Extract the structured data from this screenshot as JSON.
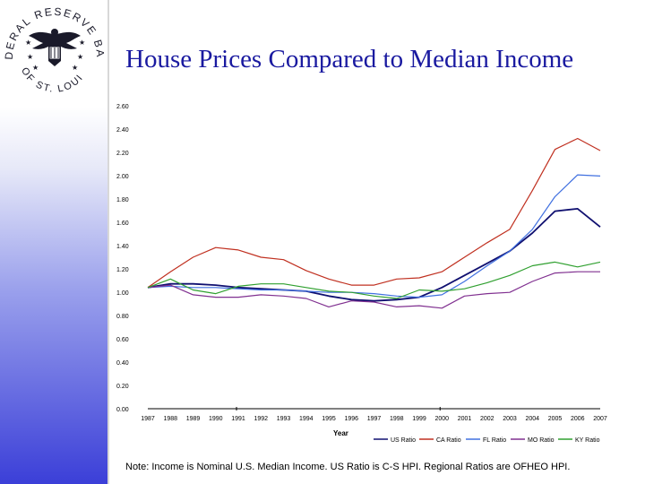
{
  "seal": {
    "top_text": "FEDERAL RESERVE BANK",
    "bottom_text": "OF ST. LOUIS"
  },
  "title": "House Prices Compared to Median Income",
  "note": "Note: Income is Nominal U.S. Median Income. US Ratio is C-S HPI. Regional Ratios are OFHEO HPI.",
  "colors": {
    "title": "#1a1aa0",
    "US": "#101070",
    "CA": "#c03020",
    "FL": "#4070e0",
    "MO": "#803090",
    "KY": "#30a030"
  },
  "chart_data": {
    "type": "line",
    "title": "House Prices Compared to Median Income",
    "xlabel": "Year",
    "ylabel": "",
    "ylim": [
      0,
      2.5
    ],
    "ytick_labels": [
      "0.00",
      "0.20",
      "0.40",
      "0.60",
      "0.80",
      "1.00",
      "1.20",
      "1.40",
      "1.60",
      "1.80",
      "2.00",
      "2.20",
      "2.40",
      "2.60"
    ],
    "categories": [
      "1987",
      "1988",
      "1989",
      "1990",
      "1991",
      "1992",
      "1993",
      "1994",
      "1995",
      "1996",
      "1997",
      "1998",
      "1999",
      "2000",
      "2001",
      "2002",
      "2003",
      "2004",
      "2005",
      "2006",
      "2007"
    ],
    "series": [
      {
        "name": "US Ratio",
        "color": "#101070",
        "values": [
          1.0,
          1.03,
          1.03,
          1.02,
          1.0,
          0.99,
          0.98,
          0.97,
          0.93,
          0.9,
          0.89,
          0.9,
          0.92,
          1.0,
          1.1,
          1.2,
          1.3,
          1.45,
          1.63,
          1.65,
          1.5
        ]
      },
      {
        "name": "CA Ratio",
        "color": "#c03020",
        "values": [
          1.0,
          1.13,
          1.25,
          1.33,
          1.31,
          1.25,
          1.23,
          1.14,
          1.07,
          1.02,
          1.02,
          1.07,
          1.08,
          1.13,
          1.25,
          1.37,
          1.48,
          1.8,
          2.14,
          2.23,
          2.13
        ]
      },
      {
        "name": "FL Ratio",
        "color": "#4070e0",
        "values": [
          1.0,
          1.01,
          1.0,
          1.0,
          0.99,
          0.98,
          0.98,
          0.97,
          0.96,
          0.96,
          0.95,
          0.93,
          0.92,
          0.94,
          1.05,
          1.18,
          1.3,
          1.48,
          1.75,
          1.93,
          1.92
        ]
      },
      {
        "name": "MO Ratio",
        "color": "#803090",
        "values": [
          1.0,
          1.02,
          0.94,
          0.92,
          0.92,
          0.94,
          0.93,
          0.91,
          0.84,
          0.89,
          0.88,
          0.84,
          0.85,
          0.83,
          0.93,
          0.95,
          0.96,
          1.05,
          1.12,
          1.13,
          1.13
        ]
      },
      {
        "name": "KY Ratio",
        "color": "#30a030",
        "values": [
          1.0,
          1.07,
          0.98,
          0.95,
          1.01,
          1.03,
          1.03,
          1.0,
          0.97,
          0.96,
          0.93,
          0.91,
          0.98,
          0.97,
          0.99,
          1.04,
          1.1,
          1.18,
          1.21,
          1.17,
          1.21
        ]
      }
    ],
    "legend_position": "bottom-right"
  }
}
